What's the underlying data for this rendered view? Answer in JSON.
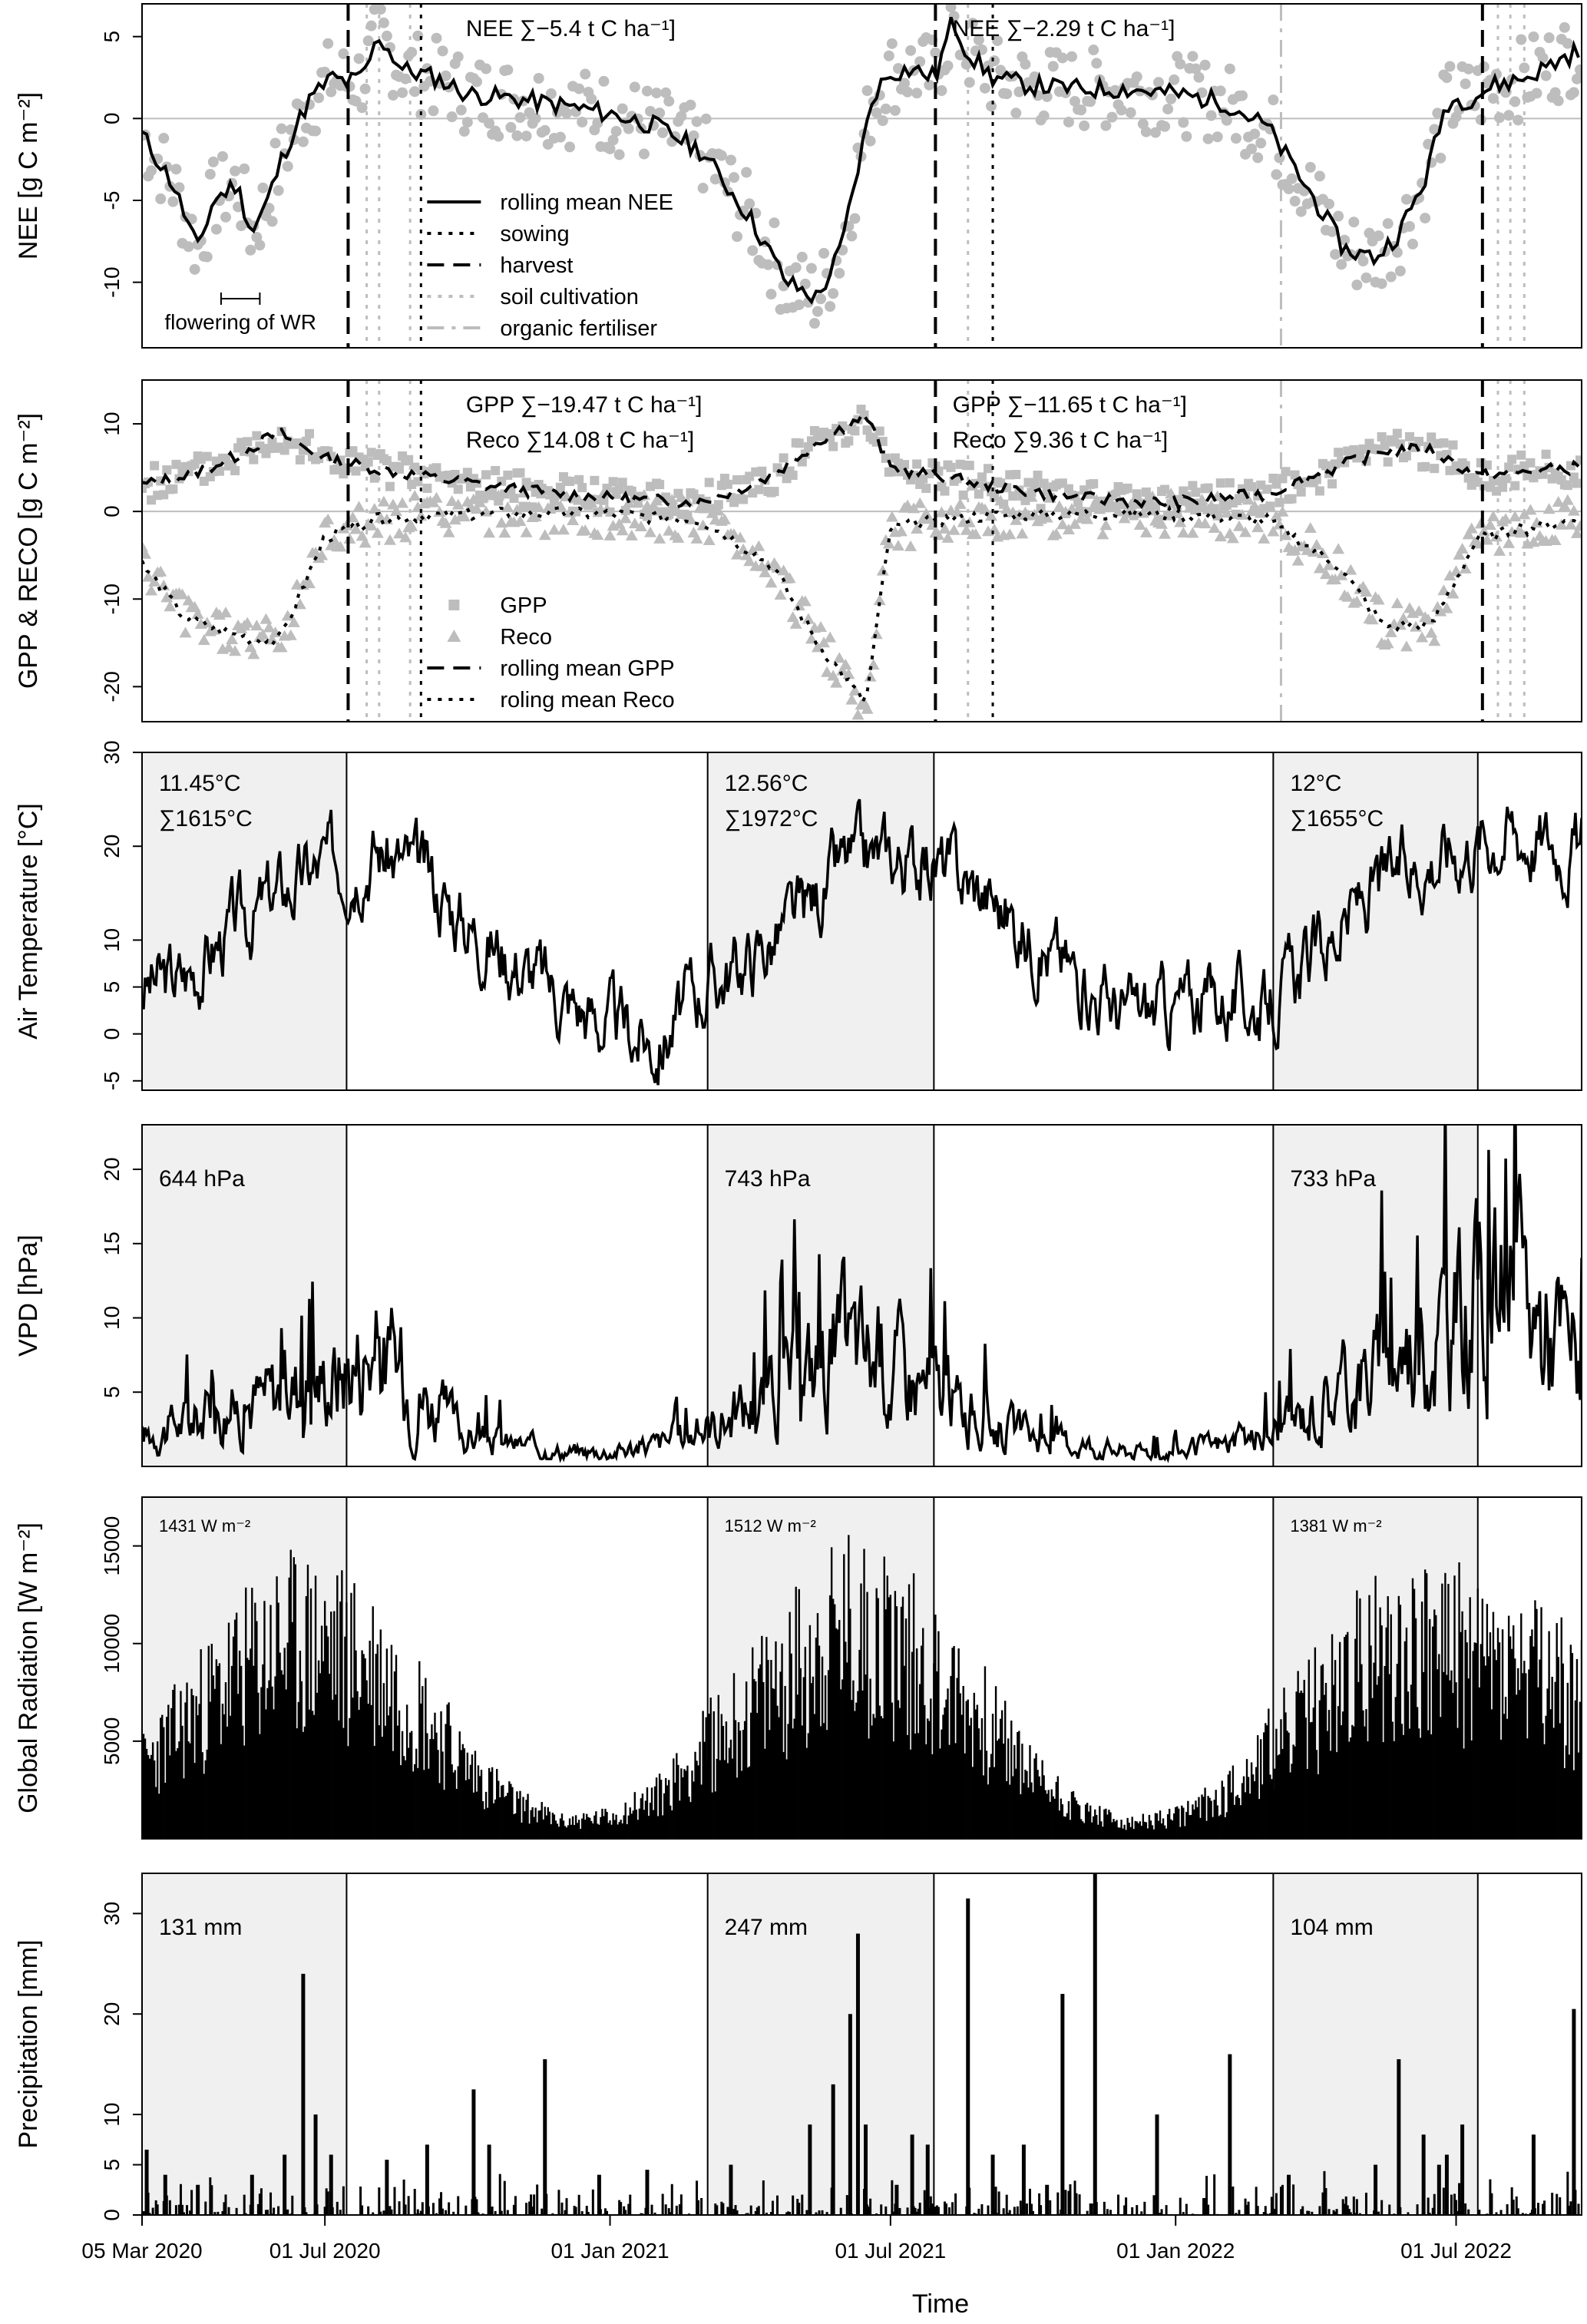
{
  "figure": {
    "xlabel": "Time",
    "x_axis": {
      "range": [
        "2020-03-05",
        "2022-09-20"
      ],
      "ticks": [
        {
          "date": "2020-03-05",
          "label": "05 Mar 2020"
        },
        {
          "date": "2020-07-01",
          "label": "01 Jul 2020"
        },
        {
          "date": "2021-01-01",
          "label": "01 Jan 2021"
        },
        {
          "date": "2021-07-01",
          "label": "01 Jul 2021"
        },
        {
          "date": "2022-01-01",
          "label": "01 Jan 2022"
        },
        {
          "date": "2022-07-01",
          "label": "01 Jul 2022"
        }
      ]
    },
    "season_shading": [
      {
        "start": "2020-03-05",
        "end": "2020-07-15"
      },
      {
        "start": "2021-03-05",
        "end": "2021-07-29"
      },
      {
        "start": "2022-03-05",
        "end": "2022-07-15"
      }
    ],
    "colors": {
      "points": "#bdbdbd",
      "lines": "#000000",
      "shade": "#f0f0f0",
      "zero": "#bdbdbd"
    }
  },
  "chart_data": [
    {
      "id": "nee",
      "type": "scatter",
      "ylabel": "NEE [g C m⁻²]",
      "ylim": [
        -14,
        7
      ],
      "yticks": [
        -10,
        -5,
        0,
        5
      ],
      "sums": [
        {
          "date": "2020-09-30",
          "text": "NEE ∑−5.4 t C ha⁻¹]"
        },
        {
          "date": "2021-08-10",
          "text": "NEE ∑−2.29 t C ha⁻¹]"
        }
      ],
      "annotation": {
        "text": "flowering of WR",
        "start": "2020-04-25",
        "end": "2020-05-20",
        "y": -11
      },
      "legend": [
        {
          "label": "rolling mean NEE",
          "style": "solid",
          "color": "#000000"
        },
        {
          "label": "sowing",
          "style": "dotted",
          "color": "#000000"
        },
        {
          "label": "harvest",
          "style": "dashed",
          "color": "#000000"
        },
        {
          "label": "soil cultivation",
          "style": "dotted",
          "color": "#bdbdbd"
        },
        {
          "label": "organic fertiliser",
          "style": "dashdot",
          "color": "#bdbdbd"
        }
      ],
      "events": {
        "harvest": [
          "2020-07-16",
          "2021-07-30",
          "2022-07-18"
        ],
        "sowing": [
          "2020-09-01",
          "2021-09-05"
        ],
        "soil_cultivation": [
          "2020-07-28",
          "2020-08-05",
          "2020-08-25",
          "2021-08-20",
          "2022-07-28",
          "2022-08-05",
          "2022-08-14"
        ],
        "organic_fertiliser": [
          "2022-03-10"
        ]
      },
      "x": [
        "2020-03-05",
        "2020-03-25",
        "2020-04-10",
        "2020-04-20",
        "2020-05-05",
        "2020-05-15",
        "2020-05-25",
        "2020-06-05",
        "2020-06-20",
        "2020-07-05",
        "2020-07-15",
        "2020-07-25",
        "2020-08-05",
        "2020-08-20",
        "2020-09-10",
        "2020-10-01",
        "2020-11-01",
        "2020-12-01",
        "2021-01-01",
        "2021-02-01",
        "2021-03-01",
        "2021-04-01",
        "2021-04-25",
        "2021-05-15",
        "2021-05-30",
        "2021-06-10",
        "2021-06-20",
        "2021-07-01",
        "2021-07-15",
        "2021-07-30",
        "2021-08-10",
        "2021-08-20",
        "2021-09-05",
        "2021-10-01",
        "2021-11-01",
        "2021-12-01",
        "2022-01-01",
        "2022-02-01",
        "2022-03-01",
        "2022-04-01",
        "2022-04-20",
        "2022-05-10",
        "2022-05-25",
        "2022-06-10",
        "2022-06-25",
        "2022-07-10",
        "2022-07-25",
        "2022-08-15",
        "2022-09-15"
      ],
      "series": [
        {
          "name": "rolling mean NEE",
          "values": [
            -1,
            -4,
            -8,
            -5,
            -4,
            -7,
            -5,
            -2,
            1,
            2.5,
            2.2,
            2.5,
            5,
            3,
            2.5,
            1.5,
            1.2,
            0.8,
            0.3,
            -0.5,
            -2,
            -6,
            -10,
            -11,
            -8,
            -3,
            1.5,
            2.8,
            3,
            2.5,
            6,
            4,
            2.5,
            2,
            1.8,
            1.8,
            1.5,
            1.0,
            -0.5,
            -5,
            -8,
            -8.5,
            -7,
            -4,
            1,
            1.2,
            2,
            2.5,
            4
          ]
        }
      ]
    },
    {
      "id": "gpp",
      "type": "scatter",
      "ylabel": "GPP & RECO [g C m⁻²]",
      "ylim": [
        -24,
        15
      ],
      "yticks": [
        -20,
        -10,
        0,
        10
      ],
      "sums": [
        {
          "date": "2020-09-30",
          "text": "GPP ∑−19.47 t C ha⁻¹]",
          "row": 0
        },
        {
          "date": "2020-09-30",
          "text": "Reco ∑14.08 t C ha⁻¹]",
          "row": 1
        },
        {
          "date": "2021-08-10",
          "text": "GPP ∑−11.65 t C ha⁻¹]",
          "row": 0
        },
        {
          "date": "2021-08-10",
          "text": "Reco ∑9.36 t C ha⁻¹]",
          "row": 1
        }
      ],
      "legend": [
        {
          "label": "GPP",
          "marker": "square",
          "color": "#bdbdbd"
        },
        {
          "label": "Reco",
          "marker": "triangle",
          "color": "#bdbdbd"
        },
        {
          "label": "rolling mean GPP",
          "style": "dashed",
          "color": "#000000"
        },
        {
          "label": "roling mean Reco",
          "style": "dotted",
          "color": "#000000"
        }
      ],
      "x": [
        "2020-03-05",
        "2020-04-01",
        "2020-05-01",
        "2020-06-01",
        "2020-07-01",
        "2020-08-01",
        "2020-09-01",
        "2020-11-01",
        "2021-01-01",
        "2021-03-01",
        "2021-04-15",
        "2021-05-15",
        "2021-06-15",
        "2021-07-01",
        "2021-08-01",
        "2021-09-01",
        "2021-11-01",
        "2022-01-01",
        "2022-03-01",
        "2022-04-15",
        "2022-05-15",
        "2022-06-15",
        "2022-07-15",
        "2022-09-15"
      ],
      "series": [
        {
          "name": "rolling mean GPP",
          "values": [
            3,
            4,
            6,
            9,
            6,
            5,
            4,
            2.5,
            1.5,
            1,
            4,
            8,
            11,
            5,
            4,
            3,
            1.5,
            1,
            2,
            5,
            7,
            7,
            4,
            5
          ]
        },
        {
          "name": "roling mean Reco",
          "values": [
            -6,
            -12,
            -14,
            -15,
            -3,
            -1,
            -0.5,
            -0.2,
            -0.3,
            -1,
            -6,
            -15,
            -22,
            -2,
            -1,
            -0.5,
            -0.3,
            -0.3,
            -1,
            -6,
            -13,
            -13,
            -3,
            -1
          ]
        }
      ]
    },
    {
      "id": "temp",
      "type": "line",
      "ylabel": "Air Temperature [°C]",
      "ylim": [
        -6,
        30
      ],
      "yticks": [
        -5,
        0,
        5,
        10,
        20,
        30
      ],
      "labels": [
        {
          "date": "2020-03-05",
          "lines": [
            "11.45°C",
            "∑1615°C"
          ]
        },
        {
          "date": "2021-03-05",
          "lines": [
            "12.56°C",
            "∑1972°C"
          ]
        },
        {
          "date": "2022-03-05",
          "lines": [
            "12°C",
            "∑1655°C"
          ]
        }
      ],
      "x": [
        "2020-03-05",
        "2020-04-01",
        "2020-05-01",
        "2020-06-01",
        "2020-07-01",
        "2020-08-01",
        "2020-09-01",
        "2020-10-01",
        "2020-11-01",
        "2020-12-01",
        "2021-01-01",
        "2021-02-01",
        "2021-03-01",
        "2021-04-01",
        "2021-05-01",
        "2021-06-01",
        "2021-07-01",
        "2021-08-01",
        "2021-09-01",
        "2021-10-01",
        "2021-11-01",
        "2021-12-01",
        "2022-01-01",
        "2022-02-01",
        "2022-03-01",
        "2022-04-01",
        "2022-05-01",
        "2022-06-01",
        "2022-07-01",
        "2022-08-01",
        "2022-09-15"
      ],
      "series": [
        {
          "name": "",
          "values": [
            5,
            6,
            11,
            15,
            18,
            20,
            17,
            12,
            8,
            4,
            1,
            -1,
            5,
            8,
            12,
            18,
            19,
            18,
            15,
            10,
            6,
            2,
            3,
            4,
            3,
            8,
            14,
            18,
            20,
            22,
            20
          ]
        }
      ]
    },
    {
      "id": "vpd",
      "type": "line",
      "ylabel": "VPD [hPa]",
      "ylim": [
        0,
        23
      ],
      "yticks": [
        5,
        10,
        15,
        20
      ],
      "labels": [
        {
          "date": "2020-03-05",
          "lines": [
            "644 hPa"
          ]
        },
        {
          "date": "2021-03-05",
          "lines": [
            "743 hPa"
          ]
        },
        {
          "date": "2022-03-05",
          "lines": [
            "733 hPa"
          ]
        }
      ],
      "x": [
        "2020-03-05",
        "2020-04-01",
        "2020-05-01",
        "2020-06-01",
        "2020-07-01",
        "2020-08-01",
        "2020-09-01",
        "2020-10-01",
        "2020-11-01",
        "2020-12-01",
        "2021-01-01",
        "2021-02-01",
        "2021-03-01",
        "2021-04-01",
        "2021-05-01",
        "2021-06-01",
        "2021-07-01",
        "2021-08-01",
        "2021-09-01",
        "2021-10-01",
        "2021-11-01",
        "2021-12-01",
        "2022-01-01",
        "2022-02-01",
        "2022-03-01",
        "2022-04-01",
        "2022-05-01",
        "2022-06-01",
        "2022-07-01",
        "2022-08-01",
        "2022-09-15"
      ],
      "series": [
        {
          "name": "",
          "values": [
            2,
            3,
            4,
            5,
            6,
            8,
            5,
            2,
            1.5,
            1,
            1,
            1.5,
            2.5,
            4,
            6,
            8,
            7,
            5,
            3,
            2,
            1.5,
            1,
            1,
            1.5,
            2,
            4,
            6,
            8,
            10,
            12,
            8
          ]
        }
      ]
    },
    {
      "id": "rad",
      "type": "bar",
      "ylabel": "Global Radiation [W m⁻²]",
      "ylim": [
        0,
        17500
      ],
      "yticks": [
        5000,
        10000,
        15000
      ],
      "labels": [
        {
          "date": "2020-03-05",
          "lines": [
            "1431 W m⁻²"
          ]
        },
        {
          "date": "2021-03-05",
          "lines": [
            "1512 W m⁻²"
          ]
        },
        {
          "date": "2022-03-05",
          "lines": [
            "1381 W m⁻²"
          ]
        }
      ],
      "x": [
        "2020-03-05",
        "2020-04-01",
        "2020-05-01",
        "2020-06-01",
        "2020-07-01",
        "2020-08-01",
        "2020-09-01",
        "2020-10-01",
        "2020-11-01",
        "2020-12-01",
        "2021-01-01",
        "2021-02-01",
        "2021-03-01",
        "2021-04-01",
        "2021-05-01",
        "2021-06-01",
        "2021-07-01",
        "2021-08-01",
        "2021-09-01",
        "2021-10-01",
        "2021-11-01",
        "2021-12-01",
        "2022-01-01",
        "2022-02-01",
        "2022-03-01",
        "2022-04-01",
        "2022-05-01",
        "2022-06-01",
        "2022-07-01",
        "2022-08-01",
        "2022-09-15"
      ],
      "series": [
        {
          "name": "",
          "envelope": [
            5000,
            8000,
            11000,
            13500,
            13500,
            12000,
            9000,
            5000,
            2500,
            1200,
            1500,
            3000,
            6000,
            9000,
            12000,
            14500,
            14000,
            11000,
            8000,
            4500,
            2000,
            1000,
            1500,
            3000,
            6000,
            9000,
            12000,
            13500,
            13000,
            12000,
            10000
          ]
        }
      ]
    },
    {
      "id": "prec",
      "type": "bar",
      "ylabel": "Precipitation [mm]",
      "ylim": [
        0,
        34
      ],
      "yticks": [
        0,
        5,
        10,
        20,
        30
      ],
      "labels": [
        {
          "date": "2020-03-05",
          "lines": [
            "131 mm"
          ]
        },
        {
          "date": "2021-03-05",
          "lines": [
            "247 mm"
          ]
        },
        {
          "date": "2022-03-05",
          "lines": [
            "104 mm"
          ]
        }
      ],
      "x": [
        "2020-03-08",
        "2020-03-20",
        "2020-04-10",
        "2020-05-15",
        "2020-06-05",
        "2020-06-17",
        "2020-06-25",
        "2020-07-05",
        "2020-08-10",
        "2020-09-05",
        "2020-10-05",
        "2020-10-15",
        "2020-11-20",
        "2020-12-25",
        "2021-01-25",
        "2021-03-20",
        "2021-05-10",
        "2021-05-25",
        "2021-06-05",
        "2021-06-10",
        "2021-06-15",
        "2021-07-05",
        "2021-07-15",
        "2021-07-25",
        "2021-08-20",
        "2021-09-05",
        "2021-09-25",
        "2021-10-10",
        "2021-10-20",
        "2021-11-10",
        "2021-12-20",
        "2022-02-05",
        "2022-03-15",
        "2022-05-10",
        "2022-05-25",
        "2022-06-10",
        "2022-06-20",
        "2022-06-25",
        "2022-07-05",
        "2022-08-20",
        "2022-09-15"
      ],
      "series": [
        {
          "name": "",
          "values": [
            6.5,
            4,
            3,
            4,
            6,
            24,
            10,
            6,
            5.5,
            7,
            12.5,
            7,
            15.5,
            4,
            4.5,
            5,
            9,
            13,
            20,
            28,
            9,
            3,
            8,
            7,
            31.5,
            6,
            7,
            3,
            22,
            34.5,
            10,
            16,
            4,
            5,
            15.5,
            8,
            5,
            6,
            9,
            8,
            20.5
          ]
        }
      ]
    }
  ]
}
